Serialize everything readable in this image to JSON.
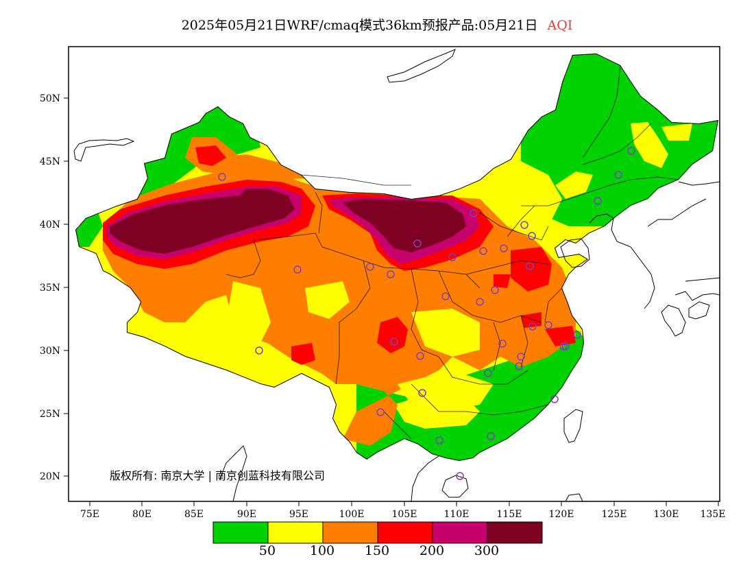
{
  "title": {
    "main": "2025年05月21日WRF/cmaq模式36km预报产品:05月21日",
    "variable": "AQI"
  },
  "lat_ticks": [
    "50N",
    "45N",
    "40N",
    "35N",
    "30N",
    "25N",
    "20N"
  ],
  "lon_ticks": [
    "75E",
    "80E",
    "85E",
    "90E",
    "95E",
    "100E",
    "105E",
    "110E",
    "115E",
    "120E",
    "125E",
    "130E",
    "135E"
  ],
  "copyright": "版权所有: 南京大学 | 南京创蓝科技有限公司",
  "legend": {
    "colors": [
      "#00d200",
      "#ffff00",
      "#ff7e00",
      "#ff0000",
      "#c8006e",
      "#7e0023"
    ],
    "labels": [
      "50",
      "100",
      "150",
      "200",
      "300"
    ]
  },
  "stations": 36
}
